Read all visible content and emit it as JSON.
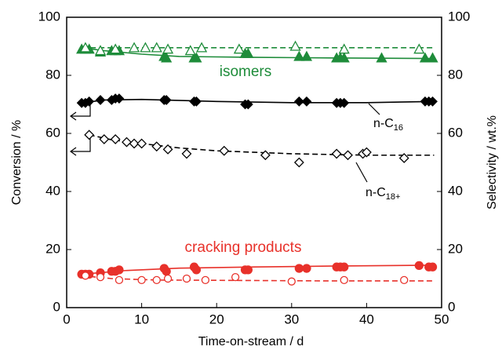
{
  "chart_data": {
    "type": "scatter",
    "xlabel": "Time-on-stream /  d",
    "ylabel": "Conversion / %",
    "y2label": "Selectivity /  wt.%",
    "xlim": [
      0,
      50
    ],
    "xticks": [
      0,
      10,
      20,
      30,
      40,
      50
    ],
    "ylim": [
      0,
      100
    ],
    "yticks": [
      0,
      20,
      40,
      60,
      80,
      100
    ],
    "y2lim": [
      0,
      100
    ],
    "y2ticks": [
      0,
      20,
      40,
      60,
      80,
      100
    ],
    "series": [
      {
        "color": "#1e8c3a",
        "marker": "triangle",
        "filled": true,
        "axis": "y2",
        "x": [
          2,
          2.5,
          3,
          4.5,
          6,
          6.5,
          7,
          13,
          13.3,
          17,
          17.3,
          23.8,
          24.2,
          31,
          32,
          36,
          36.5,
          37,
          42,
          47.8,
          48.8
        ],
        "values": [
          89,
          89,
          89,
          88,
          88.5,
          88.5,
          88.5,
          86.5,
          86,
          86,
          86,
          87.5,
          87.5,
          86.5,
          86.5,
          86,
          86,
          86,
          86,
          86,
          86
        ]
      },
      {
        "color": "#1e8c3a",
        "marker": "triangle",
        "filled": false,
        "axis": "y2",
        "x": [
          2.5,
          4.5,
          6.5,
          9,
          10.5,
          12,
          13.5,
          16.5,
          18,
          23,
          30.5,
          37,
          47
        ],
        "values": [
          89.5,
          88.5,
          89,
          89.5,
          89.5,
          89.5,
          89,
          88.5,
          89.5,
          89,
          90,
          89,
          89
        ]
      },
      {
        "color": "#000000",
        "marker": "diamond",
        "filled": true,
        "axis": "y",
        "x": [
          2,
          2.5,
          3,
          4.5,
          6,
          6.5,
          7,
          13,
          13.3,
          17,
          17.3,
          23.8,
          24.2,
          31,
          32,
          36,
          36.5,
          37,
          47.8,
          48.3,
          48.8
        ],
        "values": [
          70.5,
          70.5,
          71,
          71.5,
          71.5,
          72,
          72,
          71.5,
          71.5,
          71,
          71,
          70,
          70,
          71,
          71,
          70.5,
          70.5,
          70.5,
          71,
          71,
          71
        ]
      },
      {
        "color": "#000000",
        "marker": "diamond",
        "filled": false,
        "axis": "y",
        "x": [
          3,
          5,
          6.5,
          8,
          9,
          10,
          12,
          13.5,
          16,
          21,
          26.5,
          31,
          36,
          37.5,
          39.5,
          40,
          45
        ],
        "values": [
          59.5,
          58,
          58,
          57,
          56.5,
          56.5,
          55.5,
          54.5,
          53,
          54,
          52.5,
          50,
          53,
          52.5,
          53,
          53.5,
          51.5
        ]
      },
      {
        "color": "#e8312a",
        "marker": "circle",
        "filled": true,
        "axis": "y2",
        "x": [
          2,
          2.5,
          3,
          4.5,
          6,
          6.5,
          7,
          13,
          13.3,
          17,
          17.3,
          23.8,
          24.2,
          31,
          32,
          36,
          36.5,
          37,
          47,
          48.3,
          48.8
        ],
        "values": [
          11.5,
          11.5,
          11.5,
          12,
          12.5,
          12.5,
          13,
          13.5,
          12.5,
          14,
          13,
          13,
          13,
          13.5,
          13.5,
          14,
          14,
          14,
          14.5,
          14,
          14
        ]
      },
      {
        "color": "#e8312a",
        "marker": "circle",
        "filled": false,
        "axis": "y2",
        "x": [
          2.5,
          4.5,
          7,
          10,
          12,
          13.5,
          16,
          18.5,
          22.5,
          30,
          37,
          45
        ],
        "values": [
          11,
          10.5,
          9.5,
          9.5,
          9.5,
          10,
          10,
          9.5,
          10.5,
          9,
          9.5,
          9.5
        ]
      }
    ],
    "fits": [
      {
        "color": "#1e8c3a",
        "dashed": false,
        "axis": "y2",
        "x": [
          2,
          5,
          10,
          15,
          25,
          35,
          49
        ],
        "values": [
          89.5,
          88.5,
          87.3,
          86.5,
          86.2,
          86,
          85.8
        ]
      },
      {
        "color": "#1e8c3a",
        "dashed": true,
        "axis": "y2",
        "x": [
          2,
          49
        ],
        "values": [
          89.5,
          89.5
        ]
      },
      {
        "color": "#000000",
        "dashed": false,
        "axis": "y",
        "x": [
          2,
          5,
          10,
          20,
          30,
          40,
          49
        ],
        "values": [
          70.5,
          71.5,
          71.7,
          71,
          70.6,
          70.6,
          71
        ]
      },
      {
        "color": "#000000",
        "dashed": true,
        "axis": "y",
        "x": [
          3,
          6,
          10,
          15,
          20,
          30,
          40,
          49
        ],
        "values": [
          59.5,
          57.8,
          56.5,
          55,
          54,
          53,
          52.5,
          52.5
        ]
      },
      {
        "color": "#e8312a",
        "dashed": false,
        "axis": "y2",
        "x": [
          2,
          8,
          15,
          25,
          35,
          49
        ],
        "values": [
          11.5,
          12.8,
          13.6,
          14,
          14.3,
          14.6
        ]
      },
      {
        "color": "#e8312a",
        "dashed": true,
        "axis": "y2",
        "x": [
          2,
          6,
          12,
          20,
          35,
          49
        ],
        "values": [
          11,
          10,
          9.5,
          9.4,
          9.2,
          9.2
        ]
      }
    ],
    "annotations": {
      "isomers": "isomers",
      "cracking": "cracking products",
      "nc16": {
        "base": "n-C",
        "sub": "16"
      },
      "nc18": {
        "base": "n-C",
        "sub": "18+"
      }
    }
  }
}
